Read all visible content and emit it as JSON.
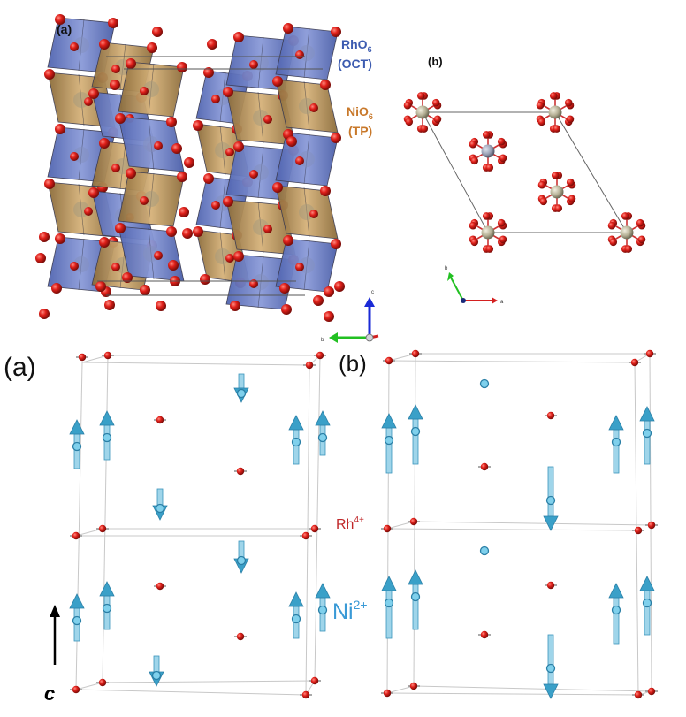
{
  "top_panel": {
    "label_a": "(a)",
    "label_b": "(b)",
    "rho6_main": "RhO",
    "rho6_sub": "6",
    "rho6_note": "(OCT)",
    "nio6_main": "NiO",
    "nio6_sub": "6",
    "nio6_note": "(TP)",
    "axis_a": "a",
    "axis_b": "b",
    "axis_c": "c"
  },
  "bottom_panel": {
    "label_a": "(a)",
    "label_b": "(b)",
    "rh_main": "Rh",
    "rh_sup": "4+",
    "ni_main": "Ni",
    "ni_sup": "2+",
    "c_axis": "c"
  },
  "colors": {
    "octahedra": "#6b7fc4",
    "prism": "#b08a4e",
    "oxygen": "#cc1f1f",
    "metal": "#b8b49a",
    "ni_spin": "#3aa0c8",
    "rh_label": "#c0282a",
    "ni_label": "#3a9ad6",
    "rho_label": "#3c5bb0",
    "nio_label": "#c8782a"
  }
}
